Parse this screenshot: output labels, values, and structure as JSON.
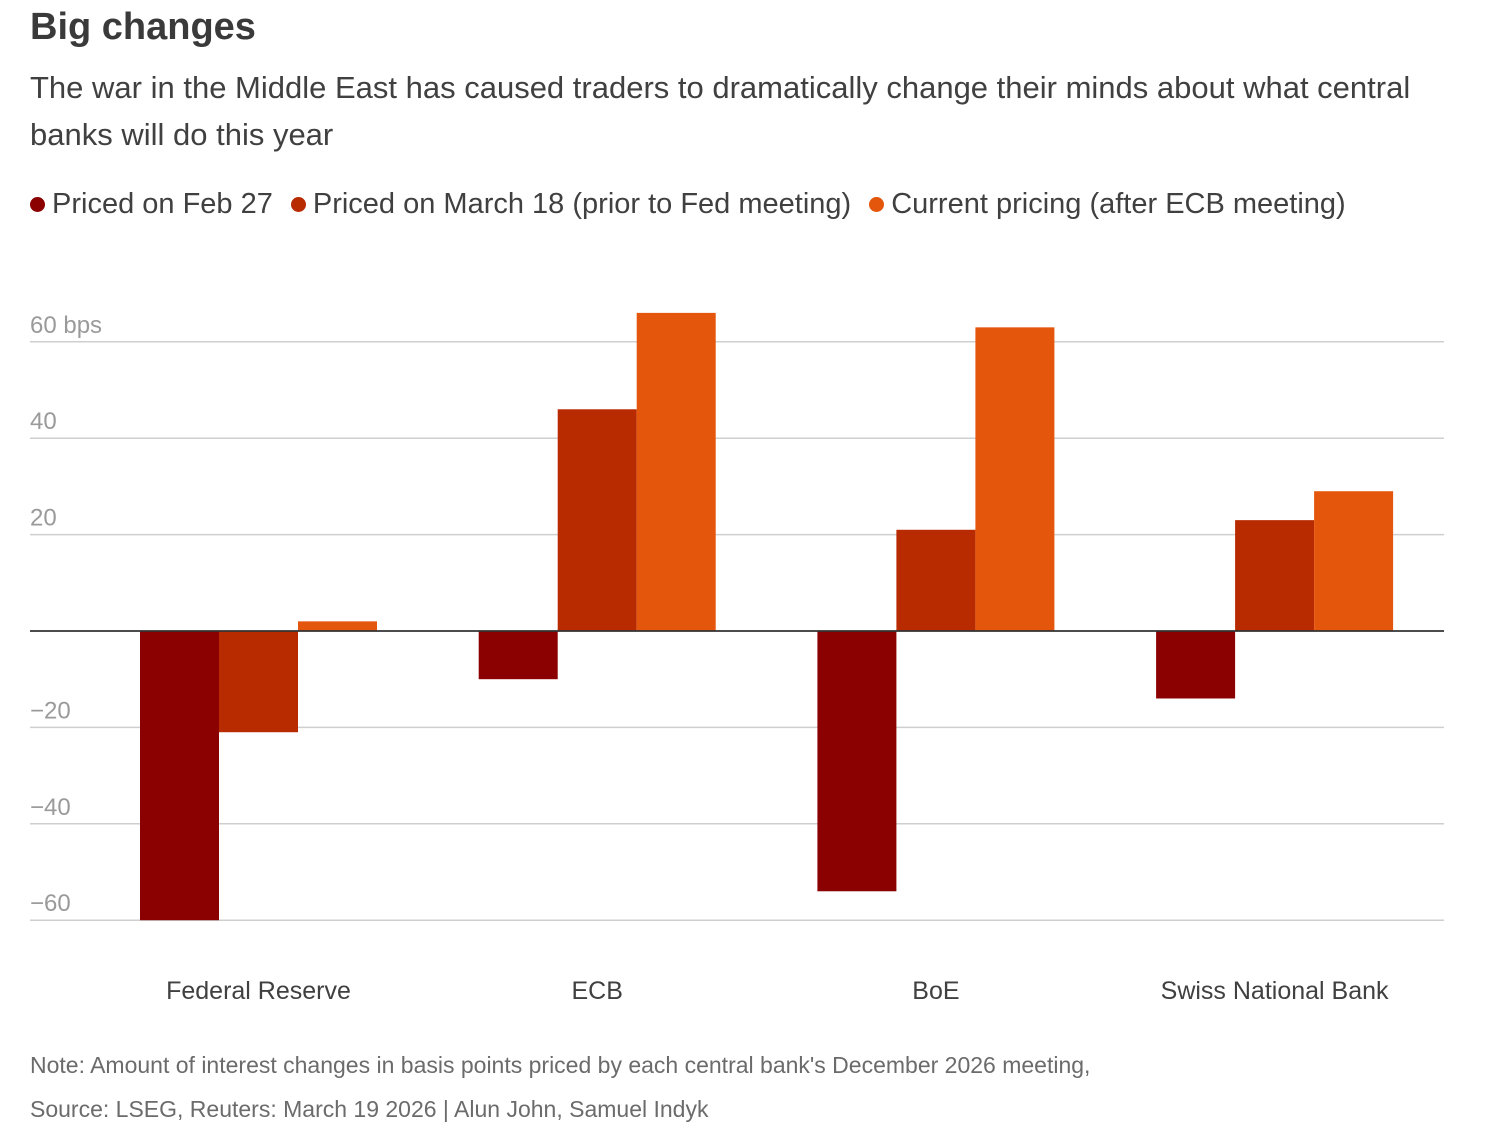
{
  "chart_data": {
    "type": "bar",
    "title": "Big changes",
    "subtitle": "The war in the Middle East has caused traders to dramatically change their minds about what central banks will do this year",
    "categories": [
      "Federal Reserve",
      "ECB",
      "BoE",
      "Swiss National Bank"
    ],
    "series": [
      {
        "name": "Priced on Feb 27",
        "color": "#8b0000",
        "values": [
          -60,
          -10,
          -54,
          -14
        ]
      },
      {
        "name": "Priced on March 18 (prior to Fed meeting)",
        "color": "#b82a00",
        "values": [
          -21,
          46,
          21,
          23
        ]
      },
      {
        "name": "Current pricing (after ECB meeting)",
        "color": "#e4560c",
        "values": [
          2,
          66,
          63,
          29
        ]
      }
    ],
    "yticks": [
      60,
      40,
      20,
      -20,
      -40,
      -60
    ],
    "ytick_labels": [
      "60 bps",
      "40",
      "20",
      "−20",
      "−40",
      "−60"
    ],
    "ylim": [
      -60,
      66
    ],
    "xlabel": "",
    "ylabel": "bps",
    "grid": true,
    "legend_position": "top-left"
  },
  "note": "Note: Amount of interest changes in basis points priced by each central bank's December 2026 meeting,",
  "source": "Source: LSEG, Reuters: March 19 2026 | Alun John, Samuel Indyk"
}
